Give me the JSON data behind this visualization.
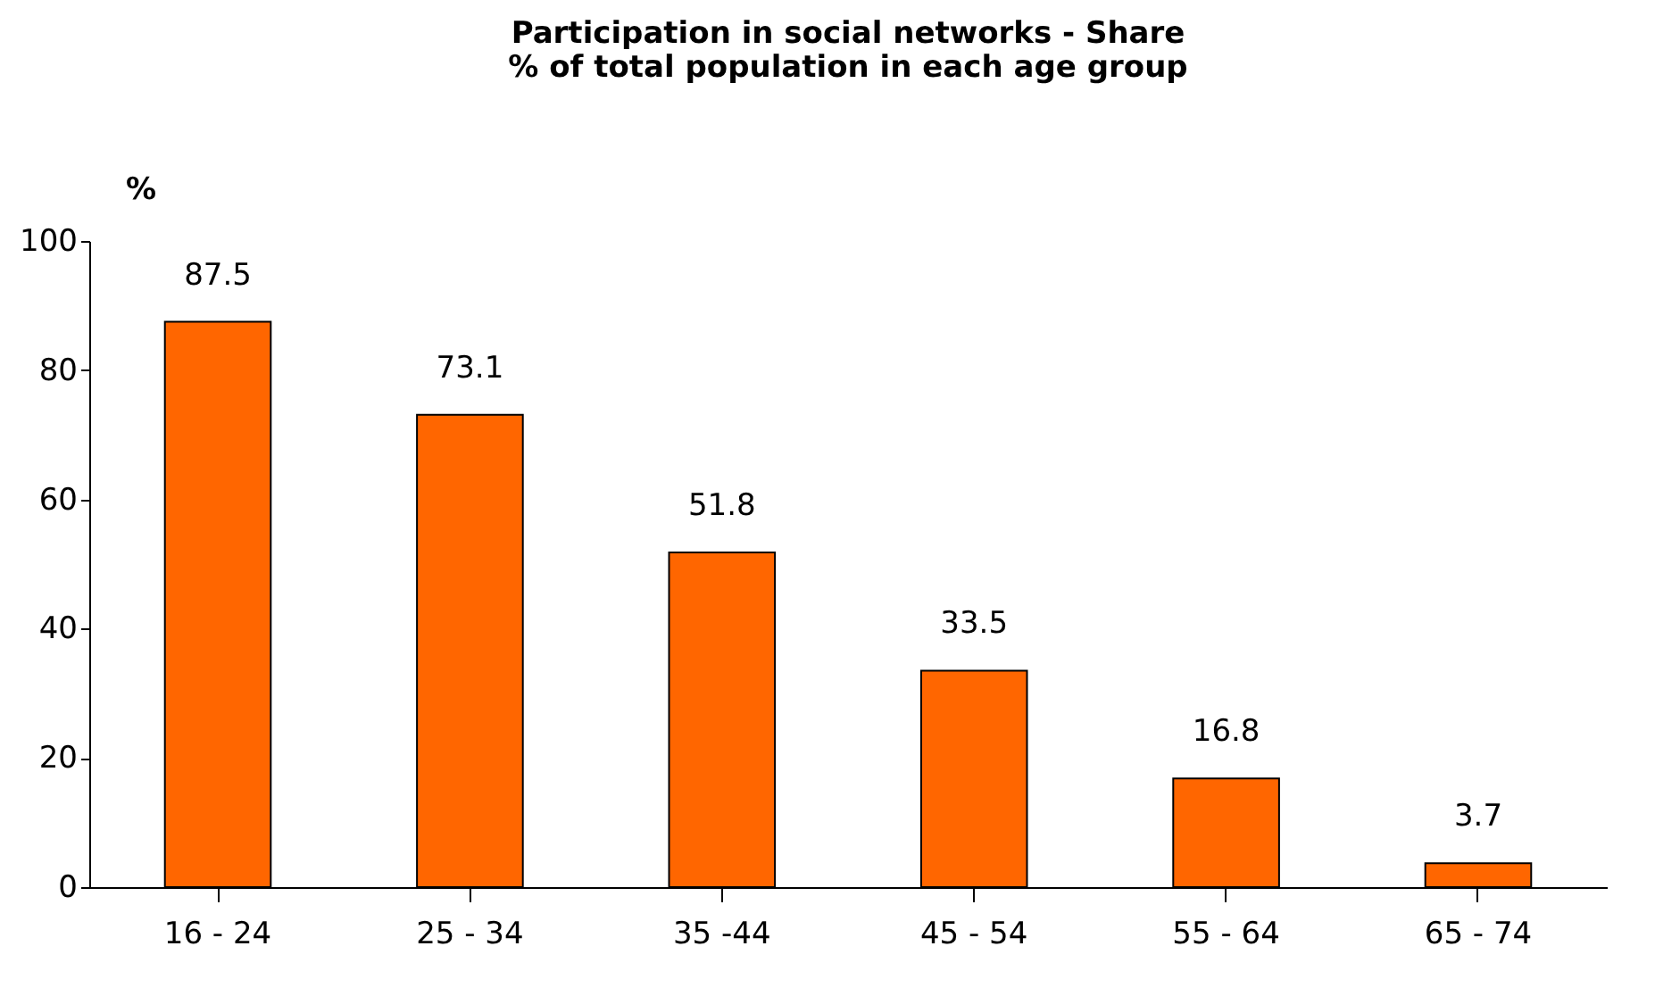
{
  "chart_data": {
    "type": "bar",
    "title": "Participation in social networks - Share % of total population in each age group",
    "ylabel": "%",
    "categories": [
      "16 - 24",
      "25 - 34",
      "35 -44",
      "45 - 54",
      "55 - 64",
      "65 - 74"
    ],
    "values": [
      87.5,
      73.1,
      51.8,
      33.5,
      16.8,
      3.7
    ],
    "color": "#ff6600",
    "ylim": [
      0,
      100
    ],
    "yticks": [
      0,
      20,
      40,
      60,
      80,
      100
    ],
    "data_labels": true
  }
}
